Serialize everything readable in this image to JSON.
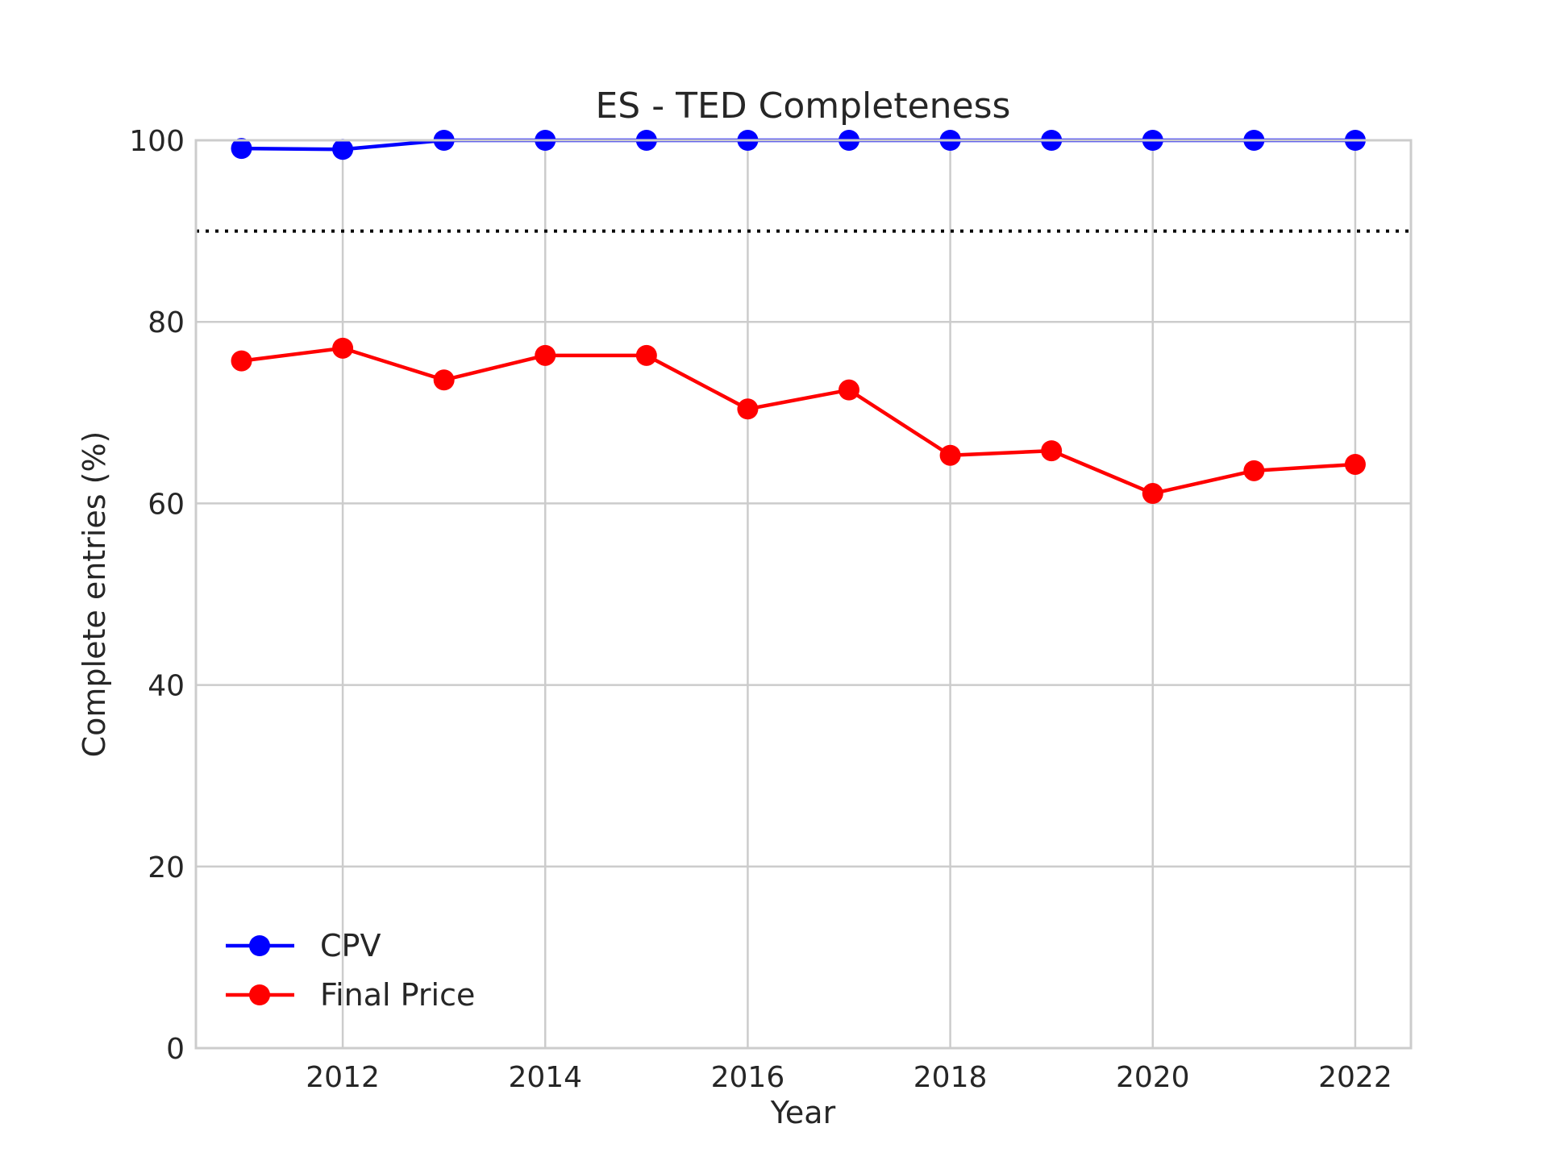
{
  "chart_data": {
    "type": "line",
    "title": "ES - TED Completeness",
    "xlabel": "Year",
    "ylabel": "Complete entries (%)",
    "x": [
      2011,
      2012,
      2013,
      2014,
      2015,
      2016,
      2017,
      2018,
      2019,
      2020,
      2021,
      2022
    ],
    "xlim": [
      2010.55,
      2022.55
    ],
    "ylim": [
      0,
      100
    ],
    "xticks": [
      2012,
      2014,
      2016,
      2018,
      2020,
      2022
    ],
    "yticks": [
      0,
      20,
      40,
      60,
      80,
      100
    ],
    "grid": true,
    "legend_position": "lower-left",
    "series": [
      {
        "name": "CPV",
        "color": "#0000ff",
        "values": [
          99.1,
          99.0,
          100,
          100,
          100,
          100,
          100,
          100,
          100,
          100,
          100,
          100
        ]
      },
      {
        "name": "Final Price",
        "color": "#ff0000",
        "values": [
          75.7,
          77.1,
          73.6,
          76.3,
          76.3,
          70.4,
          72.5,
          65.3,
          65.8,
          61.1,
          63.6,
          64.3
        ]
      }
    ],
    "reference_lines": [
      {
        "y": 90,
        "style": "dotted",
        "color": "#000000"
      }
    ]
  }
}
